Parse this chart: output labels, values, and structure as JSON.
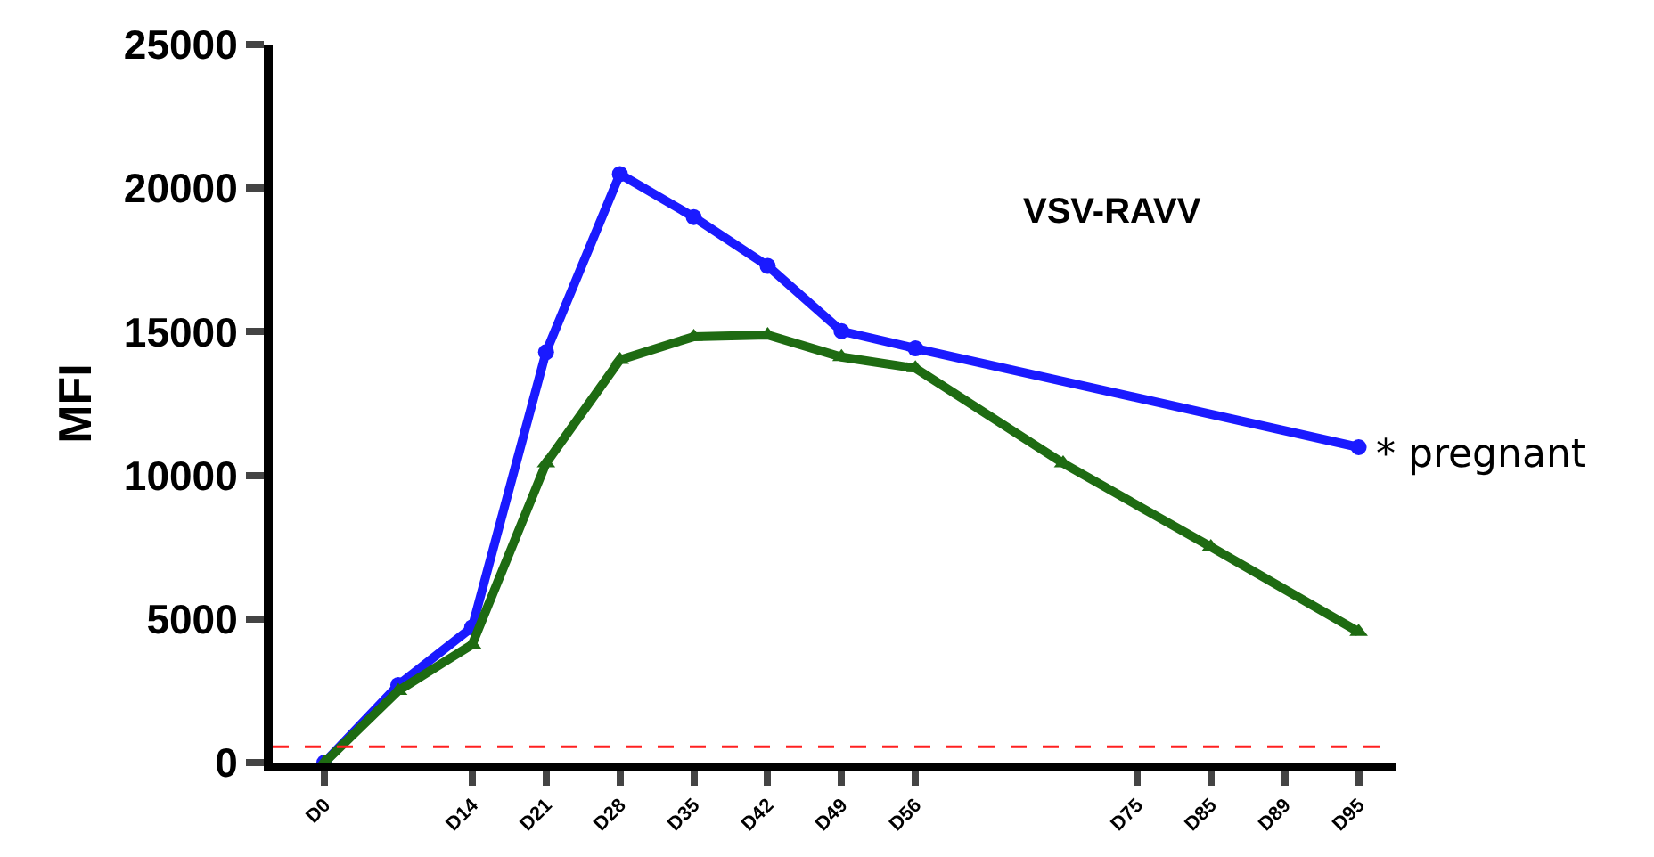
{
  "chart_data": {
    "type": "line",
    "ylabel": "MFI",
    "annotations": [
      "VSV-RAVV"
    ],
    "categories": [
      "D0",
      null,
      "D14",
      "D21",
      "D28",
      "D35",
      "D42",
      "D49",
      "D56",
      null,
      null,
      "D75",
      "D85",
      "D89",
      "D95"
    ],
    "series": [
      {
        "name": "* pregnant",
        "color": "#1a1aff",
        "marker": "circle",
        "values": [
          0,
          2700,
          4710,
          14290,
          20490,
          18990,
          17290,
          15020,
          14420,
          null,
          null,
          null,
          null,
          null,
          10980
        ]
      },
      {
        "color": "#1e6b12",
        "marker": "triangle",
        "values": [
          0,
          2500,
          4110,
          10420,
          14020,
          14830,
          14890,
          14120,
          13730,
          null,
          10420,
          null,
          7510,
          null,
          4550
        ]
      }
    ],
    "ylim": [
      0,
      25000
    ],
    "yticks": [
      0,
      5000,
      10000,
      15000,
      20000,
      25000
    ],
    "ref_lines": [
      {
        "axis": "y",
        "value": 550,
        "color": "#ff2020",
        "line_style": "dashed"
      }
    ],
    "line_style": "solid"
  }
}
